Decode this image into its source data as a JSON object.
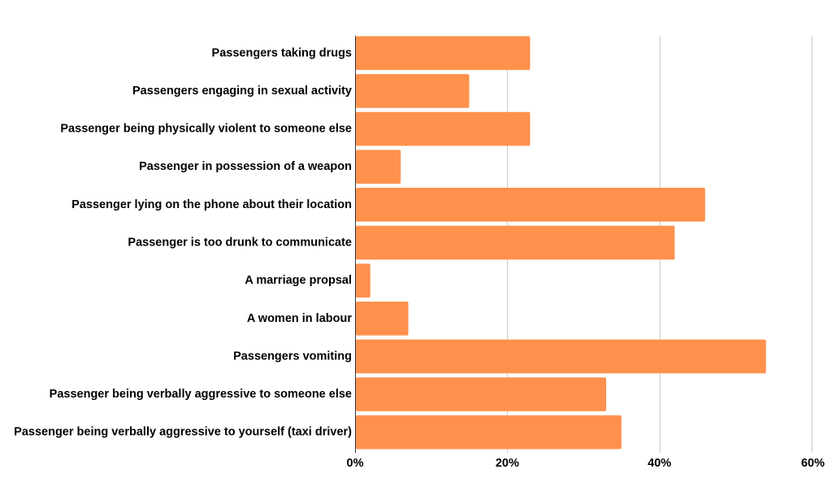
{
  "chart_data": {
    "type": "bar",
    "orientation": "horizontal",
    "title": "",
    "xlabel": "",
    "ylabel": "",
    "categories": [
      "Passengers taking drugs",
      "Passengers engaging in sexual activity",
      "Passenger being physically violent to someone else",
      "Passenger in possession of a weapon",
      "Passenger lying on the phone about their location",
      "Passenger is too drunk to communicate",
      "A marriage propsal",
      "A women in labour",
      "Passengers vomiting",
      "Passenger being verbally aggressive to someone else",
      "Passenger being verbally aggressive to yourself (taxi driver)"
    ],
    "values": [
      23,
      15,
      23,
      6,
      46,
      42,
      2,
      7,
      54,
      33,
      35
    ],
    "xlim": [
      0,
      60
    ],
    "xticks": [
      0,
      20,
      40,
      60
    ],
    "tick_labels": [
      "0%",
      "20%",
      "40%",
      "60%"
    ],
    "grid": true,
    "legend": "none",
    "bar_color": "#ff914d",
    "grid_color": "#cccccc"
  }
}
